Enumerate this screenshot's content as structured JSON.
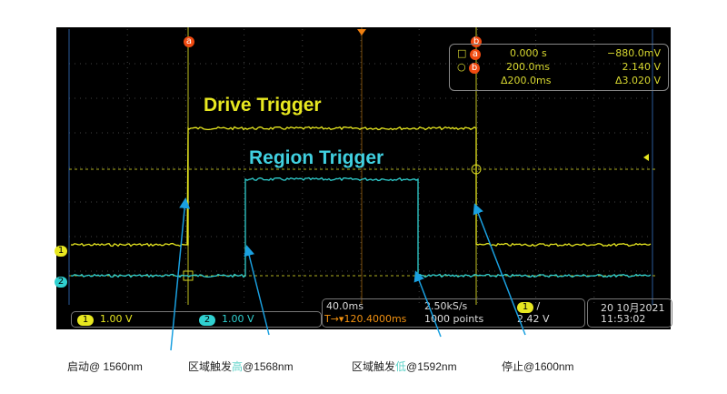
{
  "colors": {
    "ch1": "#e8e820",
    "ch2": "#30d0d0",
    "cursor": "#f05010",
    "annotation": "#1aa0e0"
  },
  "titles": {
    "drive": "Drive Trigger",
    "region": "Region Trigger"
  },
  "cursor_labels": {
    "a": "a",
    "b": "b"
  },
  "readout": {
    "a_time": "0.000 s",
    "a_volt": "−880.0mV",
    "b_time": "200.0ms",
    "b_volt": "2.140 V",
    "d_time": "Δ200.0ms",
    "d_volt": "Δ3.020 V"
  },
  "channels": [
    {
      "num": "1",
      "scale": "1.00 V"
    },
    {
      "num": "2",
      "scale": "1.00 V"
    }
  ],
  "horizontal": {
    "timebase": "40.0ms",
    "delay": "120.4000ms",
    "sample_rate": "2.50kS/s",
    "points": "1000 points"
  },
  "trigger": {
    "source": "1",
    "slope": "/",
    "level": "2.42 V"
  },
  "datetime": {
    "date": "20 10月2021",
    "time": "11:53:02"
  },
  "annotations": {
    "start": "启动@ 1560nm",
    "region_high_prefix": "区域触发",
    "region_high_word": "高",
    "region_high_suffix": "@1568nm",
    "region_low_prefix": "区域触发",
    "region_low_word": "低",
    "region_low_suffix": "@1592nm",
    "stop": "停止@1600nm"
  }
}
